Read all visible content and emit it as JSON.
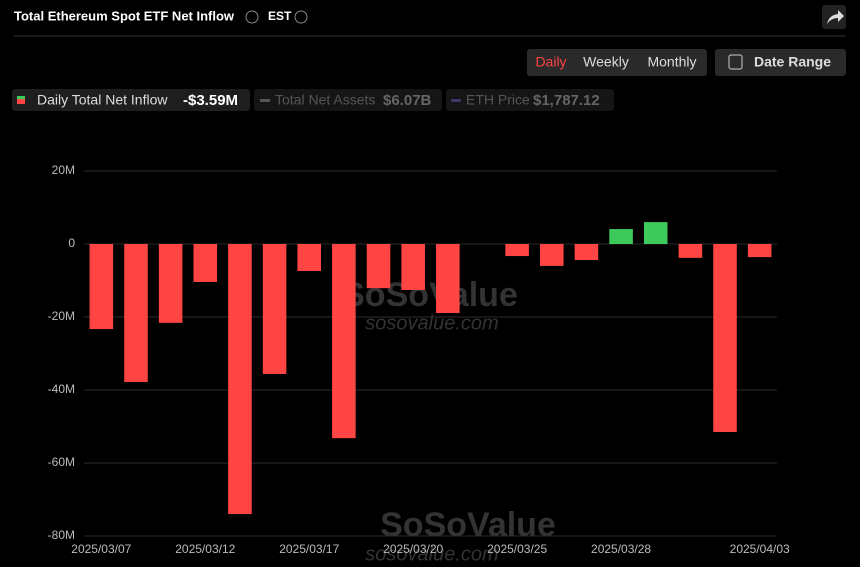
{
  "header": {
    "title": "Total Ethereum Spot ETF Net Inflow",
    "timezone": "EST",
    "tabs": [
      "Daily",
      "Weekly",
      "Monthly"
    ],
    "date_range": "Date Range"
  },
  "legend": [
    {
      "name": "Daily Total Net Inflow",
      "value": "-$3.59M"
    },
    {
      "name": "Total Net Assets",
      "value": "$6.07B"
    },
    {
      "name": "ETH Price",
      "value": "$1,787.12"
    }
  ],
  "watermark": {
    "brand": "SoSoValue",
    "url": "sosovalue.com"
  },
  "chart_data": {
    "type": "bar",
    "categories": [
      "2025/03/07",
      null,
      null,
      "2025/03/12",
      null,
      null,
      "2025/03/17",
      null,
      null,
      "2025/03/20",
      null,
      null,
      "2025/03/25",
      null,
      null,
      "2025/03/28",
      null,
      null,
      null,
      "2025/04/03"
    ],
    "values": [
      -23.3,
      -37.8,
      -21.6,
      -10.4,
      -74.0,
      -35.6,
      -7.4,
      -53.2,
      -12.1,
      -12.6,
      -18.9,
      0,
      -3.3,
      -6.0,
      -4.4,
      4.1,
      6.0,
      -3.8,
      -51.5,
      -3.59
    ],
    "positive_color": "#3ec95c",
    "negative_color": "#ff4444",
    "ylim": [
      -80,
      20
    ],
    "yticks": [
      {
        "value": 20,
        "label": "20M"
      },
      0,
      {
        "value": -20,
        "label": "-20M"
      },
      {
        "value": -40,
        "label": "-40M"
      },
      {
        "value": -60,
        "label": "-60M"
      },
      {
        "value": -80,
        "label": "-80M"
      }
    ],
    "grid": true
  }
}
